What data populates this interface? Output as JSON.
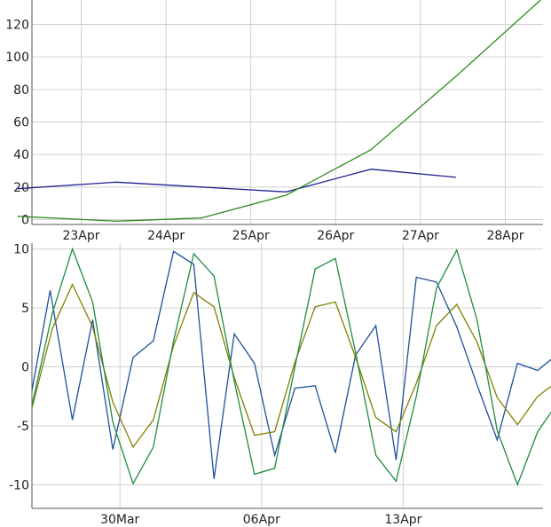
{
  "chart_data": [
    {
      "type": "line",
      "x_ticks": [
        "23Apr",
        "24Apr",
        "25Apr",
        "26Apr",
        "27Apr",
        "28Apr"
      ],
      "y_ticks": [
        "0",
        "20",
        "40",
        "60",
        "80",
        "100",
        "120"
      ],
      "ylim": [
        -3,
        135
      ],
      "grid": true,
      "series": [
        {
          "color": "#1f1f8f",
          "x": [
            "2024-04-22T06:00",
            "2024-04-23T10:00",
            "2024-04-25T10:00",
            "2024-04-26T10:00",
            "2024-04-27T10:00"
          ],
          "y": [
            19,
            23,
            17,
            31,
            26
          ]
        },
        {
          "color": "#2e8b1e",
          "x": [
            "2024-04-22T06:00",
            "2024-04-23T10:00",
            "2024-04-24T10:00",
            "2024-04-25T10:00",
            "2024-04-26T10:00",
            "2024-04-27T10:00",
            "2024-04-28T10:00"
          ],
          "y": [
            2,
            -1,
            1,
            15,
            43,
            88,
            135
          ]
        }
      ]
    },
    {
      "type": "line",
      "x_ticks": [
        "30Mar",
        "06Apr",
        "13Apr"
      ],
      "y_ticks": [
        "10",
        "5",
        "0",
        "-5",
        "-10"
      ],
      "ylim": [
        -12,
        10.5
      ],
      "grid": true,
      "x_start": "2024-03-26",
      "series": [
        {
          "color": "#1f4f99",
          "x": [
            0,
            0.9,
            2,
            3,
            4,
            5,
            6,
            7,
            8,
            9,
            10,
            11,
            12,
            13,
            14,
            15,
            16,
            17,
            18,
            19,
            20,
            21,
            22,
            23,
            24,
            25,
            26,
            27,
            28,
            28.5,
            29,
            29.5
          ],
          "y": [
            -2,
            6.5,
            -4.5,
            4,
            -7,
            0.8,
            2.2,
            9.8,
            8.7,
            -9.5,
            2.8,
            0.3,
            -7.5,
            -1.8,
            -1.6,
            -7.3,
            1,
            3.5,
            -7.9,
            7.6,
            7.2,
            3.4,
            -1.5,
            -6.2,
            0.3,
            -0.3,
            1.1,
            null,
            null,
            null,
            null,
            null
          ]
        },
        {
          "color": "#808000",
          "x": [
            0,
            1,
            2,
            3,
            4,
            5,
            6,
            7,
            8,
            9,
            10,
            11,
            12,
            13,
            14,
            15,
            16,
            17,
            18,
            19,
            20,
            21,
            22,
            23,
            24,
            25,
            26
          ],
          "y": [
            -3.5,
            3.2,
            7,
            3.4,
            -3,
            -6.8,
            -4.5,
            1.8,
            6.3,
            5.1,
            -0.9,
            -5.8,
            -5.5,
            0.4,
            5.1,
            5.5,
            0.8,
            -4.3,
            -5.5,
            -1.4,
            3.5,
            5.3,
            2.1,
            -2.6,
            -4.9,
            -2.5,
            -1.2
          ]
        },
        {
          "color": "#1f8c3f",
          "x": [
            0,
            1,
            2,
            3,
            4,
            5,
            6,
            7,
            8,
            9,
            10,
            11,
            12,
            13,
            14,
            15,
            16,
            17,
            18,
            19,
            20,
            21,
            22,
            23,
            24,
            25,
            26
          ],
          "y": [
            -3.3,
            4.5,
            10,
            5.5,
            -4.7,
            -9.9,
            -6.8,
            2.2,
            9.6,
            7.7,
            -1.2,
            -9.1,
            -8.6,
            0,
            8.3,
            9.2,
            1.2,
            -7.5,
            -9.7,
            -2.5,
            6.7,
            9.9,
            4,
            -5.4,
            -10,
            -5.5,
            -3
          ]
        }
      ]
    }
  ]
}
